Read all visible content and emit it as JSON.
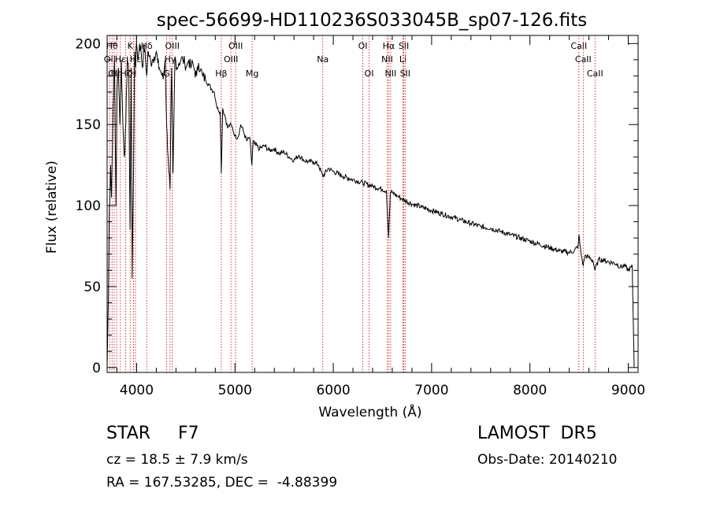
{
  "chart_data": {
    "type": "line",
    "title": "spec-56699-HD110236S033045B_sp07-126.fits",
    "xlabel": "Wavelength (Å)",
    "ylabel": "Flux (relative)",
    "xlim": [
      3700,
      9100
    ],
    "ylim": [
      -3,
      205
    ],
    "xticks": [
      4000,
      5000,
      6000,
      7000,
      8000,
      9000
    ],
    "yticks": [
      0,
      50,
      100,
      150,
      200
    ],
    "grid": false,
    "line_color": "#000000",
    "marker_color": "#cc2222",
    "series": [
      {
        "x": [
          3700,
          3712,
          3722,
          3735,
          3745,
          3760,
          3775,
          3790,
          3800,
          3815,
          3830,
          3845,
          3860,
          3875,
          3890,
          3905,
          3920,
          3933,
          3945,
          3955,
          3968,
          3980,
          3990,
          4000,
          4015,
          4030,
          4045,
          4060,
          4075,
          4090,
          4102,
          4115,
          4130,
          4145,
          4160,
          4180,
          4200,
          4215,
          4230,
          4250,
          4270,
          4290,
          4305,
          4320,
          4340,
          4355,
          4370,
          4390,
          4410,
          4430,
          4450,
          4470,
          4490,
          4510,
          4530,
          4550,
          4570,
          4590,
          4610,
          4630,
          4650,
          4670,
          4700,
          4730,
          4760,
          4790,
          4820,
          4850,
          4861,
          4875,
          4900,
          4925,
          4950,
          4975,
          5000,
          5030,
          5060,
          5090,
          5120,
          5150,
          5172,
          5185,
          5200,
          5250,
          5300,
          5350,
          5400,
          5450,
          5500,
          5550,
          5600,
          5650,
          5700,
          5750,
          5800,
          5850,
          5893,
          5950,
          6000,
          6100,
          6200,
          6300,
          6400,
          6500,
          6540,
          6563,
          6580,
          6600,
          6650,
          6700,
          6800,
          6900,
          7000,
          7100,
          7200,
          7300,
          7400,
          7500,
          7600,
          7700,
          7800,
          7900,
          8000,
          8100,
          8200,
          8300,
          8400,
          8450,
          8490,
          8498,
          8520,
          8542,
          8560,
          8600,
          8640,
          8662,
          8700,
          8760,
          8820,
          8880,
          8920,
          8960,
          9000,
          9030,
          9040,
          9060
        ],
        "y": [
          0,
          40,
          95,
          125,
          105,
          160,
          190,
          100,
          170,
          185,
          150,
          190,
          150,
          130,
          150,
          192,
          180,
          85,
          185,
          55,
          120,
          195,
          185,
          200,
          190,
          200,
          195,
          185,
          200,
          190,
          180,
          195,
          192,
          188,
          190,
          192,
          195,
          188,
          185,
          182,
          178,
          190,
          150,
          130,
          110,
          185,
          120,
          192,
          185,
          188,
          190,
          190,
          188,
          186,
          190,
          185,
          188,
          183,
          180,
          188,
          184,
          180,
          178,
          175,
          172,
          170,
          160,
          158,
          120,
          160,
          155,
          148,
          150,
          148,
          143,
          142,
          150,
          145,
          140,
          142,
          125,
          140,
          138,
          135,
          137,
          134,
          135,
          132,
          133,
          130,
          128,
          131,
          128,
          127,
          127,
          125,
          118,
          123,
          121,
          118,
          116,
          114,
          112,
          110,
          109,
          80,
          108,
          108,
          106,
          104,
          101,
          99,
          97,
          95,
          93,
          91,
          89,
          87,
          86,
          84,
          82,
          80,
          78,
          76,
          74,
          72,
          71,
          72,
          75,
          82,
          70,
          63,
          69,
          68,
          66,
          60,
          67,
          66,
          65,
          64,
          62,
          63,
          60,
          62,
          63,
          0
        ]
      }
    ],
    "lines": [
      {
        "x": 3727,
        "label": "OII",
        "row": 2
      },
      {
        "x": 3750,
        "label": "Hθ",
        "row": 1
      },
      {
        "x": 3771,
        "label": "OII",
        "row": 3
      },
      {
        "x": 3797,
        "label": "Hη",
        "row": 3
      },
      {
        "x": 3835,
        "label": "Hε",
        "row": 2
      },
      {
        "x": 3889,
        "label": "Hζ",
        "row": 3
      },
      {
        "x": 3934,
        "label": "K",
        "row": 1
      },
      {
        "x": 3968,
        "label": "H",
        "row": 3
      },
      {
        "x": 3988,
        "label": "Hε",
        "row": 2
      },
      {
        "x": 4102,
        "label": "Hδ",
        "row": 1
      },
      {
        "x": 4305,
        "label": "G",
        "row": 3
      },
      {
        "x": 4340,
        "label": "Hγ",
        "row": 2
      },
      {
        "x": 4363,
        "label": "OIII",
        "row": 1
      },
      {
        "x": 4861,
        "label": "Hβ",
        "row": 3
      },
      {
        "x": 4959,
        "label": "OIII",
        "row": 2
      },
      {
        "x": 5007,
        "label": "OIII",
        "row": 1
      },
      {
        "x": 5175,
        "label": "Mg",
        "row": 3
      },
      {
        "x": 5893,
        "label": "Na",
        "row": 2
      },
      {
        "x": 6300,
        "label": "OI",
        "row": 1
      },
      {
        "x": 6364,
        "label": "OI",
        "row": 3
      },
      {
        "x": 6548,
        "label": "NII",
        "row": 2
      },
      {
        "x": 6563,
        "label": "Hα",
        "row": 1
      },
      {
        "x": 6583,
        "label": "NII",
        "row": 3
      },
      {
        "x": 6708,
        "label": "Li",
        "row": 2
      },
      {
        "x": 6717,
        "label": "SII",
        "row": 1
      },
      {
        "x": 6731,
        "label": "SII",
        "row": 3
      },
      {
        "x": 8498,
        "label": "CaII",
        "row": 1
      },
      {
        "x": 8542,
        "label": "CaII",
        "row": 2
      },
      {
        "x": 8662,
        "label": "CaII",
        "row": 3
      }
    ]
  },
  "info": {
    "class": "STAR     F7",
    "cz": "cz = 18.5 ± 7.9 km/s",
    "radec": "RA = 167.53285, DEC =  -4.88399",
    "survey": "LAMOST  DR5",
    "obsdate": "Obs-Date: 20140210"
  }
}
